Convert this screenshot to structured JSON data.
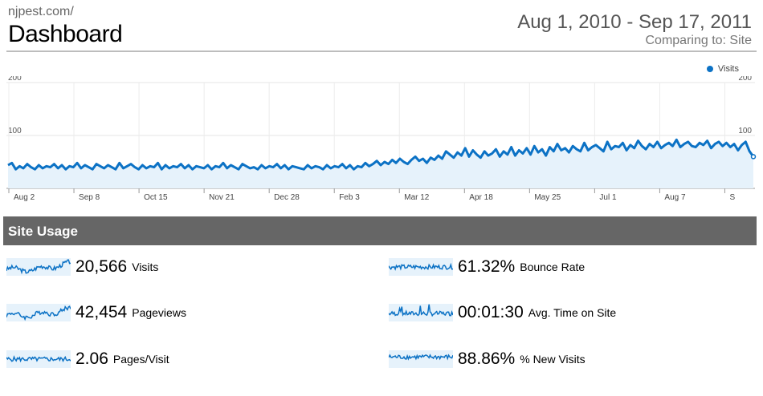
{
  "header": {
    "site": "njpest.com/",
    "title": "Dashboard",
    "date_range": "Aug 1, 2010 - Sep 17, 2011",
    "comparing": "Comparing to: Site"
  },
  "colors": {
    "accent": "#0c72c5",
    "fill": "#e6f2fb",
    "section_bar": "#666666"
  },
  "chart_data": {
    "type": "line",
    "series": [
      {
        "name": "Visits",
        "values": [
          44,
          48,
          36,
          42,
          38,
          46,
          40,
          36,
          44,
          38,
          42,
          40,
          46,
          38,
          44,
          36,
          42,
          40,
          48,
          38,
          44,
          40,
          36,
          46,
          42,
          38,
          44,
          40,
          36,
          48,
          38,
          42,
          46,
          40,
          36,
          44,
          38,
          42,
          40,
          48,
          36,
          44,
          38,
          42,
          40,
          46,
          38,
          44,
          36,
          42,
          40,
          38,
          44,
          36,
          42,
          40,
          48,
          38,
          44,
          40,
          36,
          46,
          42,
          38,
          40,
          36,
          44,
          38,
          42,
          40,
          46,
          38,
          44,
          36,
          42,
          40,
          38,
          36,
          44,
          38,
          42,
          40,
          36,
          44,
          38,
          42,
          40,
          46,
          38,
          44,
          36,
          42,
          40,
          48,
          42,
          46,
          52,
          44,
          50,
          46,
          54,
          48,
          56,
          50,
          46,
          54,
          60,
          52,
          56,
          48,
          58,
          54,
          62,
          56,
          70,
          64,
          58,
          68,
          62,
          76,
          60,
          72,
          64,
          58,
          70,
          62,
          66,
          74,
          60,
          70,
          64,
          78,
          62,
          72,
          66,
          76,
          64,
          80,
          68,
          74,
          62,
          78,
          70,
          84,
          72,
          76,
          68,
          80,
          74,
          70,
          86,
          72,
          78,
          82,
          76,
          70,
          88,
          74,
          80,
          78,
          86,
          72,
          82,
          76,
          90,
          80,
          74,
          84,
          78,
          88,
          76,
          82,
          86,
          80,
          92,
          78,
          84,
          88,
          80,
          78,
          86,
          82,
          90,
          76,
          84,
          88,
          80,
          86,
          78,
          84,
          72,
          82,
          88,
          70,
          60
        ]
      }
    ],
    "x_labels": [
      "Aug 2",
      "Sep 8",
      "Oct 15",
      "Nov 21",
      "Dec 28",
      "Feb 3",
      "Mar 12",
      "Apr 18",
      "May 25",
      "Jul 1",
      "Aug 7",
      "S"
    ],
    "y_ticks": [
      "200",
      "100"
    ],
    "ylim": [
      0,
      200
    ],
    "legend": "top-right",
    "grid": true
  },
  "section": {
    "title": "Site Usage"
  },
  "metrics": [
    {
      "value": "20,566",
      "label": "Visits",
      "trend": "rising"
    },
    {
      "value": "42,454",
      "label": "Pageviews",
      "trend": "rising"
    },
    {
      "value": "2.06",
      "label": "Pages/Visit",
      "trend": "flat"
    },
    {
      "value": "61.32%",
      "label": "Bounce Rate",
      "trend": "flat"
    },
    {
      "value": "00:01:30",
      "label": "Avg. Time on Site",
      "trend": "spiky"
    },
    {
      "value": "88.86%",
      "label": "% New Visits",
      "trend": "flat-high"
    }
  ]
}
